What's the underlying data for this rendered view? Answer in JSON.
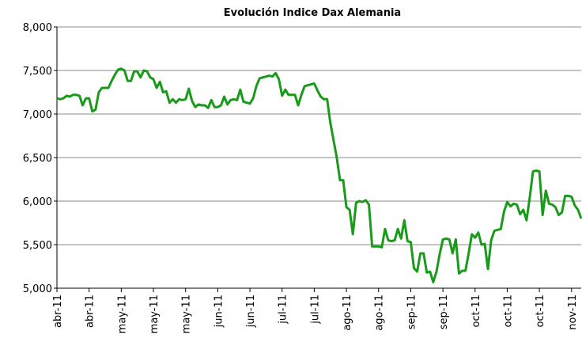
{
  "chart_data": {
    "type": "line",
    "title": "Evolución Indice Dax Alemania",
    "categories": [
      "abr-11",
      null,
      null,
      null,
      null,
      null,
      null,
      null,
      null,
      null,
      "abr-11",
      null,
      null,
      null,
      null,
      null,
      null,
      null,
      null,
      null,
      "may-11",
      null,
      null,
      null,
      null,
      null,
      null,
      null,
      null,
      null,
      "may-11",
      null,
      null,
      null,
      null,
      null,
      null,
      null,
      null,
      null,
      "may-11",
      null,
      null,
      null,
      null,
      null,
      null,
      null,
      null,
      null,
      "jun-11",
      null,
      null,
      null,
      null,
      null,
      null,
      null,
      null,
      null,
      "jun-11",
      null,
      null,
      null,
      null,
      null,
      null,
      null,
      null,
      null,
      "jul-11",
      null,
      null,
      null,
      null,
      null,
      null,
      null,
      null,
      null,
      "jul-11",
      null,
      null,
      null,
      null,
      null,
      null,
      null,
      null,
      null,
      "ago-11",
      null,
      null,
      null,
      null,
      null,
      null,
      null,
      null,
      null,
      "ago-11",
      null,
      null,
      null,
      null,
      null,
      null,
      null,
      null,
      null,
      "sep-11",
      null,
      null,
      null,
      null,
      null,
      null,
      null,
      null,
      null,
      "sep-11",
      null,
      null,
      null,
      null,
      null,
      null,
      null,
      null,
      null,
      "oct-11",
      null,
      null,
      null,
      null,
      null,
      null,
      null,
      null,
      null,
      "oct-11",
      null,
      null,
      null,
      null,
      null,
      null,
      null,
      null,
      null,
      "oct-11",
      null,
      null,
      null,
      null,
      null,
      null,
      null,
      null,
      null,
      "nov-11",
      null,
      null,
      null
    ],
    "series": [
      {
        "name": "DAX",
        "color": "#1a9a1a",
        "values": [
          7180,
          7170,
          7180,
          7210,
          7200,
          7220,
          7220,
          7210,
          7100,
          7180,
          7180,
          7030,
          7050,
          7250,
          7300,
          7300,
          7300,
          7380,
          7450,
          7510,
          7520,
          7500,
          7380,
          7380,
          7490,
          7490,
          7420,
          7500,
          7490,
          7420,
          7400,
          7300,
          7370,
          7250,
          7260,
          7130,
          7170,
          7130,
          7170,
          7160,
          7170,
          7290,
          7150,
          7080,
          7110,
          7100,
          7100,
          7070,
          7160,
          7080,
          7080,
          7100,
          7200,
          7110,
          7160,
          7170,
          7160,
          7280,
          7140,
          7130,
          7120,
          7180,
          7320,
          7410,
          7420,
          7430,
          7440,
          7430,
          7470,
          7400,
          7210,
          7280,
          7220,
          7220,
          7220,
          7100,
          7220,
          7320,
          7330,
          7340,
          7350,
          7270,
          7200,
          7170,
          7170,
          6900,
          6700,
          6500,
          6240,
          6240,
          5930,
          5900,
          5620,
          5980,
          6000,
          5990,
          6010,
          5960,
          5480,
          5480,
          5480,
          5470,
          5680,
          5550,
          5540,
          5550,
          5680,
          5570,
          5780,
          5540,
          5530,
          5230,
          5190,
          5400,
          5400,
          5180,
          5190,
          5070,
          5190,
          5390,
          5560,
          5570,
          5560,
          5400,
          5560,
          5170,
          5200,
          5200,
          5400,
          5620,
          5580,
          5640,
          5500,
          5510,
          5220,
          5550,
          5660,
          5670,
          5680,
          5880,
          5990,
          5940,
          5970,
          5960,
          5850,
          5900,
          5780,
          6040,
          6340,
          6350,
          6340,
          5840,
          6120,
          5970,
          5960,
          5930,
          5840,
          5870,
          6060,
          6060,
          6050,
          5950,
          5900,
          5800
        ]
      }
    ],
    "ylim": [
      5000,
      8000
    ],
    "yticks": [
      {
        "value": 5000,
        "label": "5,000"
      },
      {
        "value": 5500,
        "label": "5,500"
      },
      {
        "value": 6000,
        "label": "6,000"
      },
      {
        "value": 6500,
        "label": "6,500"
      },
      {
        "value": 7000,
        "label": "7,000"
      },
      {
        "value": 7500,
        "label": "7,500"
      },
      {
        "value": 8000,
        "label": "8,000"
      }
    ],
    "grid": true
  }
}
